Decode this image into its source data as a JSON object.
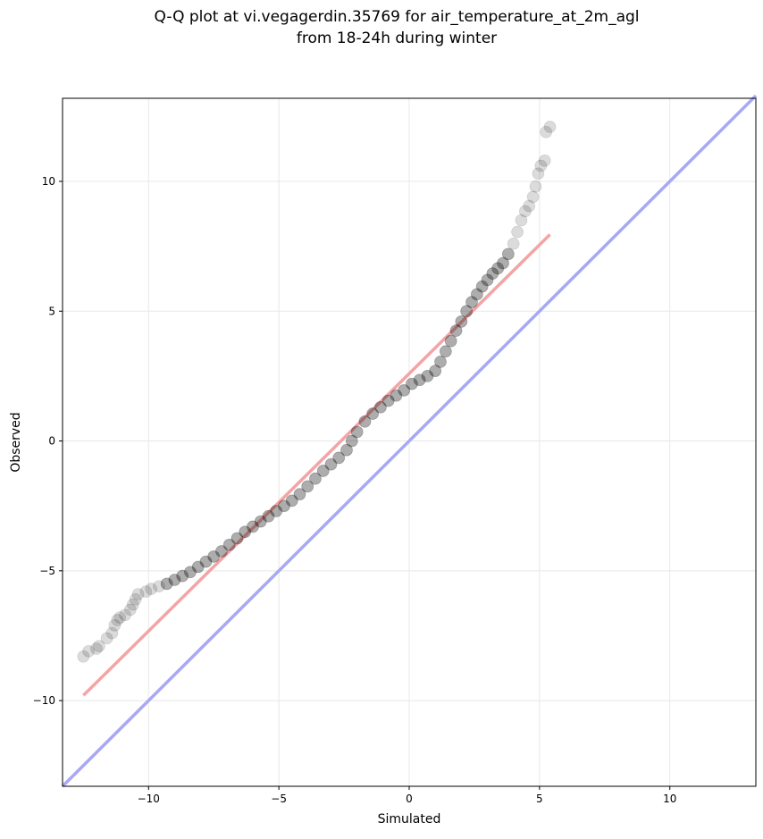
{
  "chart_data": {
    "type": "scatter",
    "title": [
      "Q-Q plot at vi.vegagerdin.35769 for air_temperature_at_2m_agl",
      "from 18-24h during winter"
    ],
    "xlabel": "Simulated",
    "ylabel": "Observed",
    "xlim": [
      -13.3,
      13.3
    ],
    "ylim": [
      -13.3,
      13.2
    ],
    "xticks": [
      -10,
      -5,
      0,
      5,
      10
    ],
    "yticks": [
      -10,
      -5,
      0,
      5,
      10
    ],
    "grid": true,
    "colors": {
      "points": "#000000",
      "fit_line": "#f4a4a4",
      "identity_line": "#a8a8f4",
      "grid": "#e8e8e8"
    },
    "series": [
      {
        "type": "scatter",
        "points": [
          [
            -12.5,
            -8.3
          ],
          [
            -12.3,
            -8.1
          ],
          [
            -12.0,
            -8.0
          ],
          [
            -11.9,
            -7.9
          ],
          [
            -11.6,
            -7.6
          ],
          [
            -11.4,
            -7.4
          ],
          [
            -11.3,
            -7.1
          ],
          [
            -11.2,
            -6.9
          ],
          [
            -11.1,
            -6.8
          ],
          [
            -10.9,
            -6.7
          ],
          [
            -10.7,
            -6.5
          ],
          [
            -10.6,
            -6.3
          ],
          [
            -10.5,
            -6.1
          ],
          [
            -10.4,
            -5.9
          ],
          [
            -10.1,
            -5.8
          ],
          [
            -9.9,
            -5.7
          ],
          [
            -9.6,
            -5.6
          ],
          [
            -9.3,
            -5.5
          ],
          [
            -9.0,
            -5.35
          ],
          [
            -8.7,
            -5.2
          ],
          [
            -8.4,
            -5.05
          ],
          [
            -8.1,
            -4.85
          ],
          [
            -7.8,
            -4.65
          ],
          [
            -7.5,
            -4.45
          ],
          [
            -7.2,
            -4.25
          ],
          [
            -6.9,
            -4.0
          ],
          [
            -6.6,
            -3.75
          ],
          [
            -6.3,
            -3.5
          ],
          [
            -6.0,
            -3.3
          ],
          [
            -5.7,
            -3.1
          ],
          [
            -5.4,
            -2.9
          ],
          [
            -5.1,
            -2.7
          ],
          [
            -4.8,
            -2.5
          ],
          [
            -4.5,
            -2.3
          ],
          [
            -4.2,
            -2.05
          ],
          [
            -3.9,
            -1.75
          ],
          [
            -3.6,
            -1.45
          ],
          [
            -3.3,
            -1.15
          ],
          [
            -3.0,
            -0.9
          ],
          [
            -2.7,
            -0.65
          ],
          [
            -2.4,
            -0.35
          ],
          [
            -2.2,
            0.0
          ],
          [
            -2.0,
            0.35
          ],
          [
            -1.7,
            0.75
          ],
          [
            -1.4,
            1.05
          ],
          [
            -1.1,
            1.3
          ],
          [
            -0.8,
            1.55
          ],
          [
            -0.5,
            1.75
          ],
          [
            -0.2,
            1.95
          ],
          [
            0.1,
            2.2
          ],
          [
            0.4,
            2.35
          ],
          [
            0.7,
            2.5
          ],
          [
            1.0,
            2.7
          ],
          [
            1.2,
            3.05
          ],
          [
            1.4,
            3.45
          ],
          [
            1.6,
            3.85
          ],
          [
            1.8,
            4.25
          ],
          [
            2.0,
            4.6
          ],
          [
            2.2,
            5.0
          ],
          [
            2.4,
            5.35
          ],
          [
            2.6,
            5.65
          ],
          [
            2.8,
            5.95
          ],
          [
            3.0,
            6.2
          ],
          [
            3.2,
            6.45
          ],
          [
            3.4,
            6.65
          ],
          [
            3.6,
            6.85
          ],
          [
            3.8,
            7.2
          ],
          [
            4.0,
            7.6
          ],
          [
            4.15,
            8.05
          ],
          [
            4.3,
            8.5
          ],
          [
            4.45,
            8.85
          ],
          [
            4.6,
            9.05
          ],
          [
            4.75,
            9.4
          ],
          [
            4.85,
            9.8
          ],
          [
            4.95,
            10.3
          ],
          [
            5.05,
            10.6
          ],
          [
            5.2,
            10.8
          ],
          [
            5.25,
            11.9
          ],
          [
            5.4,
            12.1
          ]
        ]
      },
      {
        "type": "line",
        "points": [
          [
            -12.5,
            -9.8
          ],
          [
            5.4,
            7.95
          ]
        ]
      },
      {
        "type": "line",
        "points": [
          [
            -13.3,
            -13.3
          ],
          [
            13.3,
            13.3
          ]
        ]
      }
    ]
  }
}
